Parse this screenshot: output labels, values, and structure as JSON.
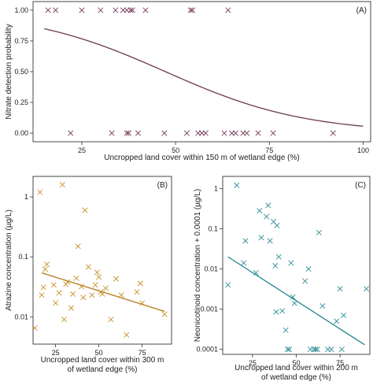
{
  "chart_data": [
    {
      "panel": "(A)",
      "type": "scatter",
      "xlabel": "Uncropped land cover within 150 m of wetland edge (%)",
      "ylabel": "Nitrate detection probability",
      "xlim": [
        12,
        102
      ],
      "ylim": [
        -0.07,
        1.07
      ],
      "xticks": [
        25,
        50,
        75,
        100
      ],
      "yticks": [
        0.0,
        0.25,
        0.5,
        0.75,
        1.0
      ],
      "ytick_labels": [
        "0.00",
        "0.25",
        "0.50",
        "0.75",
        "1.00"
      ],
      "marker_color": "#7a3f5e",
      "curve_color": "#6b3a4f",
      "points": [
        [
          16,
          1
        ],
        [
          18,
          1
        ],
        [
          25,
          1
        ],
        [
          30,
          1
        ],
        [
          34,
          1
        ],
        [
          36,
          1
        ],
        [
          37,
          1
        ],
        [
          38,
          1
        ],
        [
          38.5,
          1
        ],
        [
          42,
          1
        ],
        [
          54,
          1
        ],
        [
          54.5,
          1
        ],
        [
          64,
          1
        ],
        [
          22,
          0
        ],
        [
          33,
          0
        ],
        [
          37,
          0
        ],
        [
          37.5,
          0
        ],
        [
          40,
          0
        ],
        [
          47,
          0
        ],
        [
          53,
          0
        ],
        [
          56,
          0
        ],
        [
          57,
          0
        ],
        [
          58,
          0
        ],
        [
          63,
          0
        ],
        [
          65,
          0
        ],
        [
          66,
          0
        ],
        [
          68,
          0
        ],
        [
          69,
          0
        ],
        [
          72,
          0
        ],
        [
          76,
          0
        ],
        [
          92,
          0
        ]
      ],
      "curve": {
        "model": "logistic",
        "x": [
          15,
          100
        ],
        "b0": 2.53,
        "b1": -0.0535
      }
    },
    {
      "panel": "(B)",
      "type": "scatter",
      "xlabel": "Uncropped land cover within 300 m of wetland edge (%)",
      "ylabel": "Atrazine concentration (µg/L)",
      "yscale": "log",
      "xlim": [
        12,
        92
      ],
      "ylim": [
        0.0035,
        2.2
      ],
      "xticks": [
        25,
        50,
        75
      ],
      "yticks": [
        0.01,
        0.1,
        1
      ],
      "ytick_labels": [
        "0.01",
        "0.1",
        "1"
      ],
      "marker_color": "#c8902a",
      "line_color": "#b67a1c",
      "points": [
        [
          13,
          0.0065
        ],
        [
          16,
          1.2
        ],
        [
          17,
          0.023
        ],
        [
          18,
          0.031
        ],
        [
          19,
          0.062
        ],
        [
          20,
          0.075
        ],
        [
          24,
          0.034
        ],
        [
          25,
          0.017
        ],
        [
          27,
          0.025
        ],
        [
          29,
          1.6
        ],
        [
          30,
          0.009
        ],
        [
          31,
          0.035
        ],
        [
          32,
          0.038
        ],
        [
          34,
          0.014
        ],
        [
          35,
          0.024
        ],
        [
          37,
          0.044
        ],
        [
          38,
          0.15
        ],
        [
          40,
          0.032
        ],
        [
          41,
          0.021
        ],
        [
          42,
          0.6
        ],
        [
          44,
          0.068
        ],
        [
          46,
          0.023
        ],
        [
          48,
          0.034
        ],
        [
          49,
          0.055
        ],
        [
          50,
          0.046
        ],
        [
          51,
          0.026
        ],
        [
          52,
          0.024
        ],
        [
          54,
          0.03
        ],
        [
          57,
          0.009
        ],
        [
          60,
          0.043
        ],
        [
          63,
          0.023
        ],
        [
          66,
          0.005
        ],
        [
          72,
          0.026
        ],
        [
          74,
          0.036
        ],
        [
          75,
          0.017
        ],
        [
          88,
          0.011
        ]
      ],
      "fit_line": {
        "x": [
          17,
          88
        ],
        "y": [
          0.054,
          0.0123
        ]
      }
    },
    {
      "panel": "(C)",
      "type": "scatter",
      "xlabel": "Uncropped land cover within 200 m of wetland edge (%)",
      "ylabel": "Neonicotinoid concentration + 0.0001 (µg/L)",
      "yscale": "log",
      "xlim": [
        8,
        92
      ],
      "ylim": [
        7.5e-05,
        2.0
      ],
      "xticks": [
        25,
        50,
        75
      ],
      "yticks": [
        0.0001,
        0.001,
        0.01,
        0.1,
        1
      ],
      "ytick_labels": [
        "0.0001",
        "0.001",
        "0.01",
        "0.1",
        "1"
      ],
      "marker_color": "#2f8e94",
      "line_color": "#1f858d",
      "points": [
        [
          11,
          0.004
        ],
        [
          16,
          1.2
        ],
        [
          20,
          0.014
        ],
        [
          21,
          0.05
        ],
        [
          27,
          0.008
        ],
        [
          29,
          0.28
        ],
        [
          30,
          0.06
        ],
        [
          33,
          0.2
        ],
        [
          34,
          0.38
        ],
        [
          35,
          0.05
        ],
        [
          37,
          0.15
        ],
        [
          38,
          0.012
        ],
        [
          38.5,
          0.00085
        ],
        [
          39,
          0.12
        ],
        [
          40,
          0.02
        ],
        [
          42,
          0.0009
        ],
        [
          44,
          0.0003
        ],
        [
          45,
          0.0001
        ],
        [
          46,
          0.0001
        ],
        [
          47,
          0.014
        ],
        [
          48,
          0.002
        ],
        [
          49,
          0.0014
        ],
        [
          55,
          0.005
        ],
        [
          57,
          0.01
        ],
        [
          58,
          0.0001
        ],
        [
          60,
          0.0001
        ],
        [
          61,
          0.0001
        ],
        [
          62,
          0.0001
        ],
        [
          63,
          0.08
        ],
        [
          65,
          0.0012
        ],
        [
          68,
          0.0001
        ],
        [
          70,
          0.0001
        ],
        [
          73,
          0.0005
        ],
        [
          75,
          0.0032
        ],
        [
          76,
          0.0001
        ],
        [
          77,
          0.0007
        ],
        [
          90,
          0.0032
        ]
      ],
      "fit_line": {
        "x": [
          11,
          89
        ],
        "y": [
          0.02,
          0.00013
        ]
      }
    }
  ]
}
